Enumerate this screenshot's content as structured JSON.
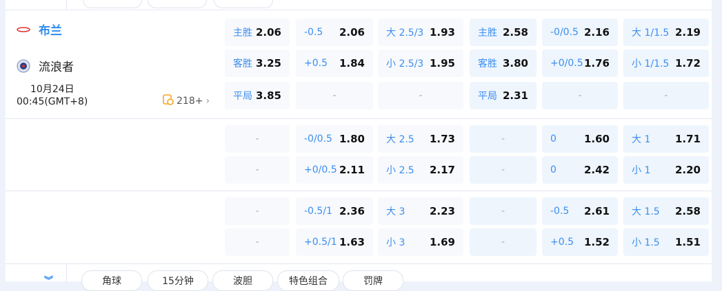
{
  "match": {
    "home": "布兰",
    "away": "流浪者",
    "date": "10月24日",
    "time": "00:45(GMT+8)",
    "count": "218+"
  },
  "colors": {
    "accent": "#2f8cf0",
    "count_icon": "#f5a623"
  },
  "rows": [
    [
      [
        "主胜",
        "2.06"
      ],
      [
        "-0.5",
        "2.06"
      ],
      [
        "大 2.5/3",
        "1.93"
      ],
      [
        "主胜",
        "2.58"
      ],
      [
        "-0/0.5",
        "2.16"
      ],
      [
        "大 1/1.5",
        "2.19"
      ]
    ],
    [
      [
        "客胜",
        "3.25"
      ],
      [
        "+0.5",
        "1.84"
      ],
      [
        "小 2.5/3",
        "1.95"
      ],
      [
        "客胜",
        "3.80"
      ],
      [
        "+0/0.5",
        "1.76"
      ],
      [
        "小 1/1.5",
        "1.72"
      ]
    ],
    [
      [
        "平局",
        "3.85"
      ],
      [
        "-",
        ""
      ],
      [
        "-",
        ""
      ],
      [
        "平局",
        "2.31"
      ],
      [
        "-",
        ""
      ],
      [
        "-",
        ""
      ]
    ],
    [
      [
        "-",
        ""
      ],
      [
        "-0/0.5",
        "1.80"
      ],
      [
        "大 2.5",
        "1.73"
      ],
      [
        "-",
        ""
      ],
      [
        "0",
        "1.60"
      ],
      [
        "大 1",
        "1.71"
      ]
    ],
    [
      [
        "-",
        ""
      ],
      [
        "+0/0.5",
        "2.11"
      ],
      [
        "小 2.5",
        "2.17"
      ],
      [
        "-",
        ""
      ],
      [
        "0",
        "2.42"
      ],
      [
        "小 1",
        "2.20"
      ]
    ],
    [
      [
        "-",
        ""
      ],
      [
        "-0.5/1",
        "2.36"
      ],
      [
        "大 3",
        "2.23"
      ],
      [
        "-",
        ""
      ],
      [
        "-0.5",
        "2.61"
      ],
      [
        "大 1.5",
        "2.58"
      ]
    ],
    [
      [
        "-",
        ""
      ],
      [
        "+0.5/1",
        "1.63"
      ],
      [
        "小 3",
        "1.69"
      ],
      [
        "-",
        ""
      ],
      [
        "+0.5",
        "1.52"
      ],
      [
        "小 1.5",
        "1.51"
      ]
    ]
  ],
  "tabs": [
    "角球",
    "15分钟",
    "波胆",
    "特色组合",
    "罚牌"
  ]
}
